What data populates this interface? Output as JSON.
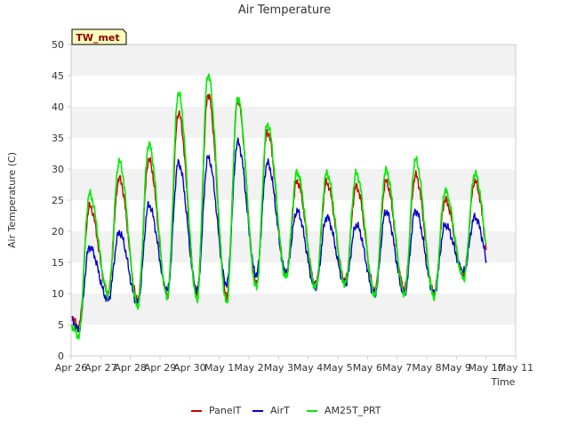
{
  "chart_data": {
    "type": "line",
    "title": "Air Temperature",
    "xlabel": "Time",
    "ylabel": "Air Temperature (C)",
    "badge": "TW_met",
    "ylim": [
      0,
      50
    ],
    "yticks": [
      0,
      5,
      10,
      15,
      20,
      25,
      30,
      35,
      40,
      45,
      50
    ],
    "xlim": [
      "2024-04-26",
      "2024-05-11"
    ],
    "xtick_labels": [
      "Apr 26",
      "Apr 27",
      "Apr 28",
      "Apr 29",
      "Apr 30",
      "May 1",
      "May 2",
      "May 3",
      "May 4",
      "May 5",
      "May 6",
      "May 7",
      "May 8",
      "May 9",
      "May 10",
      "May 11"
    ],
    "grid": "horizontal bands",
    "legend_position": "bottom-center",
    "series": [
      {
        "name": "PanelT",
        "color": "#cc0000",
        "x_start": "2024-04-26",
        "x_end": "2024-05-10",
        "daily_min": [
          4.5,
          10.2,
          9.0,
          9.8,
          10.0,
          9.5,
          11.5,
          13.0,
          11.5,
          12.0,
          10.5,
          10.8,
          10.0,
          13.0,
          12.0
        ],
        "daily_max": [
          24.0,
          28.5,
          31.5,
          39.0,
          42.0,
          41.0,
          36.0,
          28.0,
          27.8,
          27.2,
          28.0,
          29.0,
          25.0,
          28.0
        ]
      },
      {
        "name": "AirT",
        "color": "#0000cc",
        "x_start": "2024-04-26",
        "x_end": "2024-05-10",
        "daily_min": [
          4.0,
          9.0,
          8.5,
          10.5,
          10.5,
          11.5,
          13.0,
          13.5,
          11.0,
          11.5,
          10.0,
          10.0,
          10.0,
          13.5,
          12.0
        ],
        "daily_max": [
          17.5,
          19.8,
          24.2,
          31.0,
          31.8,
          34.3,
          31.0,
          23.2,
          22.3,
          21.0,
          23.2,
          23.3,
          21.0,
          22.3
        ]
      },
      {
        "name": "AM25T_PRT",
        "color": "#00ee00",
        "x_start": "2024-04-26",
        "x_end": "2024-05-10",
        "daily_min": [
          3.0,
          10.0,
          8.0,
          9.5,
          9.0,
          8.5,
          11.0,
          12.5,
          11.0,
          11.5,
          9.8,
          10.0,
          9.5,
          12.5,
          11.5
        ],
        "daily_max": [
          26.0,
          31.2,
          34.0,
          42.2,
          45.2,
          41.5,
          37.2,
          29.5,
          29.3,
          29.3,
          29.8,
          31.5,
          26.5,
          29.3
        ]
      }
    ]
  }
}
